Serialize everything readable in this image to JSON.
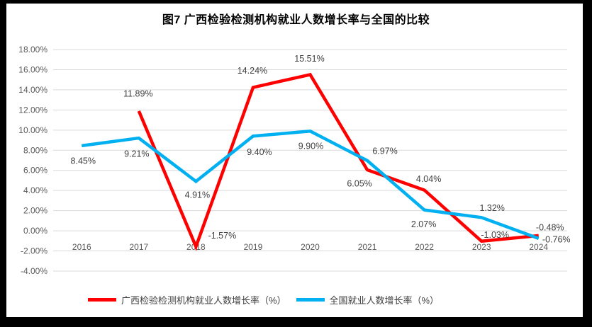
{
  "page": {
    "frame_color": "#000000",
    "canvas_color": "#ffffff"
  },
  "chart_data": {
    "type": "line",
    "title": "图7 广西检验检测机构就业人数增长率与全国的比较",
    "categories": [
      "2016",
      "2017",
      "2018",
      "2019",
      "2020",
      "2021",
      "2022",
      "2023",
      "2024"
    ],
    "y_axis": {
      "min": -4,
      "max": 18,
      "step": 2,
      "tick_labels": [
        "18.00%",
        "16.00%",
        "14.00%",
        "12.00%",
        "10.00%",
        "8.00%",
        "6.00%",
        "4.00%",
        "2.00%",
        "0.00%",
        "-2.00%",
        "-4.00%"
      ]
    },
    "grid": true,
    "legend_position": "bottom",
    "series": [
      {
        "id": "guangxi",
        "name": "广西检验检测机构就业人数增长率（%）",
        "color": "#FF0000",
        "values": [
          null,
          11.89,
          -1.57,
          14.24,
          15.51,
          6.05,
          4.04,
          -1.03,
          -0.48
        ],
        "labels": [
          "",
          "11.89%",
          "-1.57%",
          "14.24%",
          "15.51%",
          "6.05%",
          "4.04%",
          "-1.03%",
          "-0.48%"
        ],
        "label_offsets": [
          [
            0,
            0
          ],
          [
            -1,
            -25
          ],
          [
            37,
            -16
          ],
          [
            -1,
            -24
          ],
          [
            -1,
            -23
          ],
          [
            -11,
            19
          ],
          [
            6,
            -16
          ],
          [
            19,
            -9
          ],
          [
            16,
            -12
          ]
        ]
      },
      {
        "id": "national",
        "name": "全国就业人数增长率（%）",
        "color": "#00B0F0",
        "values": [
          8.45,
          9.21,
          4.91,
          9.4,
          9.9,
          6.97,
          2.07,
          1.32,
          -0.76
        ],
        "labels": [
          "8.45%",
          "9.21%",
          "4.91%",
          "9.40%",
          "9.90%",
          "6.97%",
          "2.07%",
          "1.32%",
          "-0.76%"
        ],
        "label_offsets": [
          [
            2,
            21
          ],
          [
            -3,
            22
          ],
          [
            2,
            19
          ],
          [
            9,
            22
          ],
          [
            1,
            21
          ],
          [
            25,
            -14
          ],
          [
            -1,
            20
          ],
          [
            15,
            -14
          ],
          [
            25,
            1
          ]
        ]
      }
    ],
    "colors": {
      "gridline": "#D9D9D9",
      "axis_text": "#595959",
      "data_label": "#404040",
      "title_text": "#000000"
    }
  }
}
